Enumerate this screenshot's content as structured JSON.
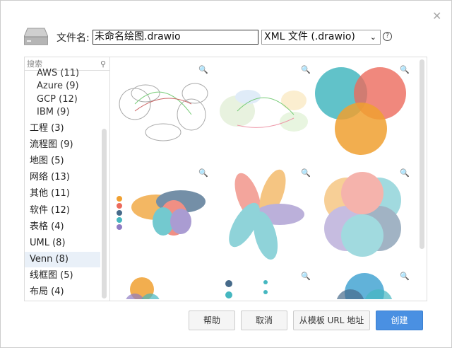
{
  "dialog": {
    "close_icon": "close-icon",
    "drive_icon": "hard-drive-icon"
  },
  "filename": {
    "label": "文件名:",
    "value": "未命名绘图.drawio"
  },
  "format": {
    "selected": "XML 文件 (.drawio)",
    "help_icon": "help-circle-icon"
  },
  "sidebar": {
    "search_placeholder": "搜索",
    "items": [
      {
        "label": "AWS (11)",
        "sub": true
      },
      {
        "label": "Azure (9)",
        "sub": true
      },
      {
        "label": "GCP (12)",
        "sub": true
      },
      {
        "label": "IBM (9)",
        "sub": true
      },
      {
        "label": "工程 (3)"
      },
      {
        "label": "流程图 (9)"
      },
      {
        "label": "地图 (5)"
      },
      {
        "label": "网络 (13)"
      },
      {
        "label": "其他 (11)"
      },
      {
        "label": "软件 (12)"
      },
      {
        "label": "表格 (4)"
      },
      {
        "label": "UML (8)"
      },
      {
        "label": "Venn (8)",
        "selected": true
      },
      {
        "label": "线框图 (5)"
      },
      {
        "label": "布局 (4)"
      }
    ]
  },
  "buttons": {
    "help": "帮助",
    "cancel": "取消",
    "template_url": "从模板 URL 地址",
    "create": "创建"
  },
  "colors": {
    "accent": "#4a90e2",
    "selected_bg": "#e9f0f8"
  }
}
